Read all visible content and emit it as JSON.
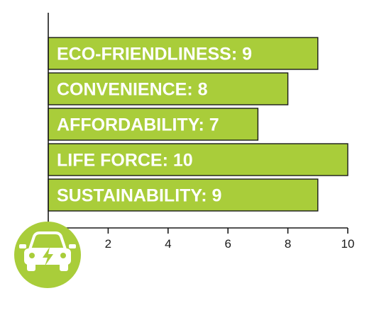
{
  "colors": {
    "bar": "#a9cd3a",
    "badge": "#a9cd3a",
    "ink": "#1a1a1a"
  },
  "icons": {
    "badge": "electric-car-icon"
  },
  "chart_data": {
    "type": "bar",
    "orientation": "horizontal",
    "categories": [
      "ECO-FRIENDLINESS",
      "CONVENIENCE",
      "AFFORDABILITY",
      "LIFE FORCE",
      "SUSTAINABILITY"
    ],
    "values": [
      9,
      8,
      7,
      10,
      9
    ],
    "bar_labels": [
      "ECO-FRIENDLINESS: 9",
      "CONVENIENCE: 8",
      "AFFORDABILITY: 7",
      "LIFE FORCE:  10",
      "SUSTAINABILITY: 9"
    ],
    "x_ticks": [
      2,
      4,
      6,
      8,
      10
    ],
    "xlim": [
      0,
      10
    ],
    "title": "",
    "xlabel": "",
    "ylabel": "",
    "grid": false,
    "legend": "none"
  }
}
